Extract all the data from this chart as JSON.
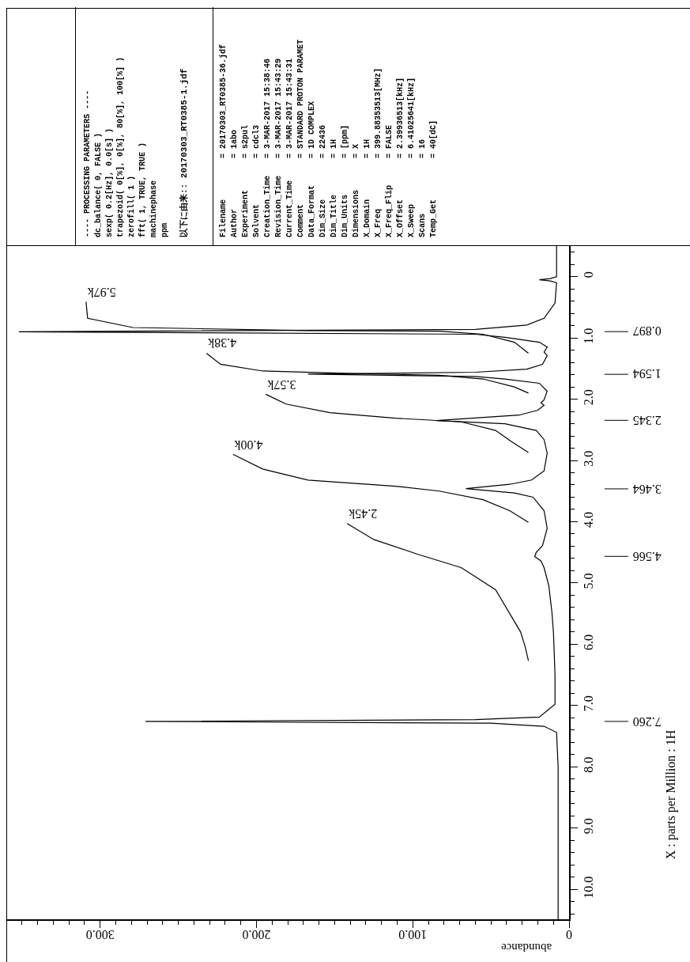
{
  "chart_data": [
    {
      "type": "line",
      "xlabel": "abundance",
      "ylabel": "X : parts per Million : 1H",
      "xlim": [
        360,
        0
      ],
      "ylim": [
        10.49,
        -0.5
      ],
      "xticks": [
        0,
        {
          "value": 10,
          "label": null
        },
        {
          "value": 20,
          "label": null
        },
        {
          "value": 30,
          "label": null
        },
        {
          "value": 40,
          "label": null
        },
        {
          "value": 50,
          "label": null
        },
        {
          "value": 60,
          "label": null
        },
        {
          "value": 70,
          "label": null
        },
        {
          "value": 80,
          "label": null
        },
        {
          "value": 90,
          "label": null
        },
        {
          "value": 100,
          "label": "100.0"
        },
        {
          "value": 110,
          "label": null
        },
        {
          "value": 120,
          "label": null
        },
        {
          "value": 130,
          "label": null
        },
        {
          "value": 140,
          "label": null
        },
        {
          "value": 150,
          "label": null
        },
        {
          "value": 160,
          "label": null
        },
        {
          "value": 170,
          "label": null
        },
        {
          "value": 180,
          "label": null
        },
        {
          "value": 190,
          "label": null
        },
        {
          "value": 200,
          "label": "200.0"
        },
        {
          "value": 210,
          "label": null
        },
        {
          "value": 220,
          "label": null
        },
        {
          "value": 230,
          "label": null
        },
        {
          "value": 240,
          "label": null
        },
        {
          "value": 250,
          "label": null
        },
        {
          "value": 260,
          "label": null
        },
        {
          "value": 270,
          "label": null
        },
        {
          "value": 280,
          "label": null
        },
        {
          "value": 290,
          "label": null
        },
        {
          "value": 300,
          "label": "300.0"
        },
        {
          "value": 310,
          "label": null
        },
        {
          "value": 320,
          "label": null
        },
        {
          "value": 330,
          "label": null
        },
        {
          "value": 340,
          "label": null
        },
        {
          "value": 350,
          "label": null
        }
      ],
      "yticks": [
        {
          "value": -0.4,
          "label": null
        },
        {
          "value": -0.2,
          "label": null
        },
        0,
        {
          "value": 0.2,
          "label": null
        },
        {
          "value": 0.4,
          "label": null
        },
        {
          "value": 0.6,
          "label": null
        },
        {
          "value": 0.8,
          "label": null
        },
        {
          "value": 1,
          "label": "1.0"
        },
        {
          "value": 1.2,
          "label": null
        },
        {
          "value": 1.4,
          "label": null
        },
        {
          "value": 1.6,
          "label": null
        },
        {
          "value": 1.8,
          "label": null
        },
        {
          "value": 2,
          "label": "2.0"
        },
        {
          "value": 2.2,
          "label": null
        },
        {
          "value": 2.4,
          "label": null
        },
        {
          "value": 2.6,
          "label": null
        },
        {
          "value": 2.8,
          "label": null
        },
        {
          "value": 3,
          "label": "3.0"
        },
        {
          "value": 3.2,
          "label": null
        },
        {
          "value": 3.4,
          "label": null
        },
        {
          "value": 3.6,
          "label": null
        },
        {
          "value": 3.8,
          "label": null
        },
        {
          "value": 4,
          "label": "4.0"
        },
        {
          "value": 4.2,
          "label": null
        },
        {
          "value": 4.4,
          "label": null
        },
        {
          "value": 4.6,
          "label": null
        },
        {
          "value": 4.8,
          "label": null
        },
        {
          "value": 5,
          "label": "5.0"
        },
        {
          "value": 5.2,
          "label": null
        },
        {
          "value": 5.4,
          "label": null
        },
        {
          "value": 5.6,
          "label": null
        },
        {
          "value": 5.8,
          "label": null
        },
        {
          "value": 6,
          "label": "6.0"
        },
        {
          "value": 6.2,
          "label": null
        },
        {
          "value": 6.4,
          "label": null
        },
        {
          "value": 6.6,
          "label": null
        },
        {
          "value": 6.8,
          "label": null
        },
        {
          "value": 7,
          "label": "7.0"
        },
        {
          "value": 7.2,
          "label": null
        },
        {
          "value": 7.4,
          "label": null
        },
        {
          "value": 7.6,
          "label": null
        },
        {
          "value": 7.8,
          "label": null
        },
        {
          "value": 8,
          "label": "8.0"
        },
        {
          "value": 8.2,
          "label": null
        },
        {
          "value": 8.4,
          "label": null
        },
        {
          "value": 8.6,
          "label": null
        },
        {
          "value": 8.8,
          "label": null
        },
        {
          "value": 9,
          "label": "9.0"
        },
        {
          "value": 9.2,
          "label": null
        },
        {
          "value": 9.4,
          "label": null
        },
        {
          "value": 9.6,
          "label": null
        },
        {
          "value": 9.8,
          "label": null
        },
        {
          "value": 10,
          "label": "10.0"
        },
        {
          "value": 10.2,
          "label": null
        },
        {
          "value": 10.4,
          "label": null
        }
      ],
      "series": [
        {
          "color": "#000000",
          "values": [
            -0.5,
            -0.2,
            0.0,
            0.03,
            0.05,
            0.07,
            0.1,
            0.43,
            0.68,
            0.79,
            0.86,
            0.9,
            0.94,
            0.99,
            1.07,
            1.15,
            1.23,
            1.29,
            1.43,
            1.51,
            1.56,
            1.59,
            1.63,
            1.67,
            1.74,
            1.87,
            2.01,
            2.06,
            2.1,
            2.18,
            2.26,
            2.35,
            2.4,
            2.51,
            2.66,
            2.88,
            3.17,
            3.32,
            3.39,
            3.46,
            3.53,
            3.6,
            3.82,
            4.11,
            4.39,
            4.5,
            4.57,
            4.64,
            4.75,
            5.04,
            5.47,
            5.8,
            6.5,
            6.98,
            7.19,
            7.23,
            7.26,
            7.29,
            7.34,
            7.44,
            8.0,
            9.0,
            10.49
          ],
          "x": [
            8,
            8,
            8,
            12,
            19,
            12,
            8,
            9,
            16,
            27,
            60,
            352,
            60,
            41,
            19,
            14,
            16,
            14,
            17,
            27,
            60,
            167,
            60,
            41,
            19,
            14,
            16,
            18,
            16,
            20,
            32,
            85,
            41,
            21,
            16,
            14,
            16,
            24,
            38,
            66,
            35,
            23,
            16,
            14,
            17,
            21,
            22,
            18,
            16,
            13,
            11,
            10,
            9,
            9,
            19,
            60,
            271,
            50,
            16,
            8,
            7,
            7,
            7
          ]
        },
        {
          "name": "5.97k",
          "color": "#000000",
          "values": [
            0.41,
            0.68,
            0.83,
            0.88,
            0.89,
            0.94,
            1.07,
            1.25
          ],
          "x": [
            309,
            308,
            279,
            167,
            83,
            55,
            35,
            26
          ]
        },
        {
          "name": "4.38k",
          "color": "#000000",
          "values": [
            1.25,
            1.43,
            1.54,
            1.58,
            1.61,
            1.67,
            1.8,
            1.9
          ],
          "x": [
            232,
            223,
            196,
            139,
            83,
            55,
            35,
            26
          ]
        },
        {
          "name": "3.57k",
          "color": "#000000",
          "values": [
            1.92,
            2.08,
            2.22,
            2.31,
            2.37,
            2.51,
            2.69,
            2.87
          ],
          "x": [
            194,
            181,
            153,
            111,
            69,
            47,
            37,
            26
          ]
        },
        {
          "name": "4.00k",
          "color": "#000000",
          "values": [
            2.9,
            3.14,
            3.32,
            3.42,
            3.5,
            3.64,
            3.82,
            4.01
          ],
          "x": [
            215,
            196,
            167,
            111,
            83,
            55,
            38,
            26
          ]
        },
        {
          "name": "2.45k",
          "color": "#000000",
          "values": [
            4.03,
            4.29,
            4.53,
            4.75,
            5.11,
            5.8,
            6.05,
            6.27
          ],
          "x": [
            142,
            125,
            97,
            69,
            47,
            31,
            28,
            26
          ]
        }
      ],
      "ref_lines": [
        {
          "axis": "y",
          "value": 0.897,
          "label": "0.897",
          "color": "#000000"
        },
        {
          "axis": "y",
          "value": 1.594,
          "label": "1.594",
          "color": "#000000"
        },
        {
          "axis": "y",
          "value": 2.345,
          "label": "2.345",
          "color": "#000000"
        },
        {
          "axis": "y",
          "value": 3.464,
          "label": "3.464",
          "color": "#000000"
        },
        {
          "axis": "y",
          "value": 4.566,
          "label": "4.566",
          "color": "#000000"
        },
        {
          "axis": "y",
          "value": 7.26,
          "label": "7.260",
          "color": "#000000"
        }
      ]
    },
    {
      "type": "other",
      "annotations": [
        "---- PROCESSING PARAMETERS ----",
        "dc_balance( 0, FALSE )",
        "sexp( 0.2[Hz], 0.0[s] )",
        "trapezoid( 0[%], 0[%], 80[%], 100[%] )",
        "zerofill( 1 )",
        "fft( 1, TRUE, TRUE )",
        "machinephase",
        "ppm",
        "以下に由来:: 20170303_RT0385-1.jdf"
      ]
    },
    {
      "type": "other",
      "annotations": [
        "Filename = 20170303_RT0385-36.jdf",
        "Author = 1abo",
        "Experiment = s2pul",
        "Solvent = cdcl3",
        "Creation_Time = 3-MAR-2017 15:38:46",
        "Revision_Time = 3-MAR-2017 15:43:29",
        "Current_Time = 3-MAR-2017 15:43:31",
        "Comment = STANDARD PROTON PARAMET",
        "Data_Format = 1D COMPLEX",
        "Dim_Size = 22436",
        "Dim_Title = 1H",
        "Dim_Units = [ppm]",
        "Dimensions = X",
        "X_Domain = 1H",
        "X_Freq = 399.88353513[MHz]",
        "X_Freq_Flip = FALSE",
        "X_Offset = 2.39936513[kHz]",
        "X_Sweep = 6.41025641[kHz]",
        "Scans = 16",
        "Temp_Get = 40[dC]"
      ]
    }
  ]
}
